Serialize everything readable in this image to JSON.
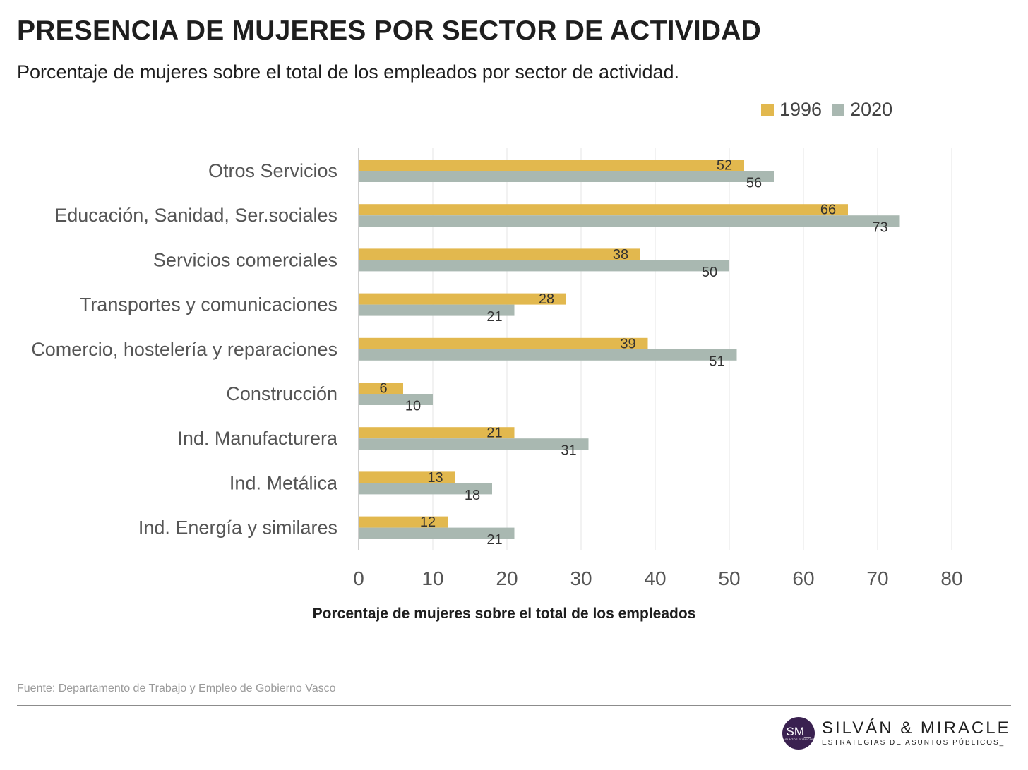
{
  "chart_data": {
    "type": "bar",
    "orientation": "horizontal",
    "title": "PRESENCIA DE MUJERES POR SECTOR DE ACTIVIDAD",
    "subtitle": "Porcentaje de mujeres sobre el total de los empleados por sector de actividad.",
    "xlabel": "Porcentaje de mujeres sobre el total de los empleados",
    "ylabel": "",
    "xlim": [
      0,
      80
    ],
    "xticks": [
      0,
      10,
      20,
      30,
      40,
      50,
      60,
      70,
      80
    ],
    "grid": true,
    "legend_position": "top-right",
    "categories": [
      "Otros Servicios",
      "Educación, Sanidad, Ser.sociales",
      "Servicios comerciales",
      "Transportes y comunicaciones",
      "Comercio, hostelería y reparaciones",
      "Construcción",
      "Ind. Manufacturera",
      "Ind. Metálica",
      "Ind. Energía y similares"
    ],
    "series": [
      {
        "name": "1996",
        "color": "#E2B84E",
        "values": [
          52,
          66,
          38,
          28,
          39,
          6,
          21,
          13,
          12
        ]
      },
      {
        "name": "2020",
        "color": "#A9B8B1",
        "values": [
          56,
          73,
          50,
          21,
          51,
          10,
          31,
          18,
          21
        ]
      }
    ]
  },
  "source": "Fuente: Departamento de Trabajo y Empleo de Gobierno Vasco",
  "brand": {
    "logo_text": "SM_",
    "logo_subtext": "ASUNTOS PÚBLICOS",
    "name": "SILVÁN & MIRACLE",
    "tagline": "ESTRATEGIAS DE ASUNTOS PÚBLICOS_"
  }
}
